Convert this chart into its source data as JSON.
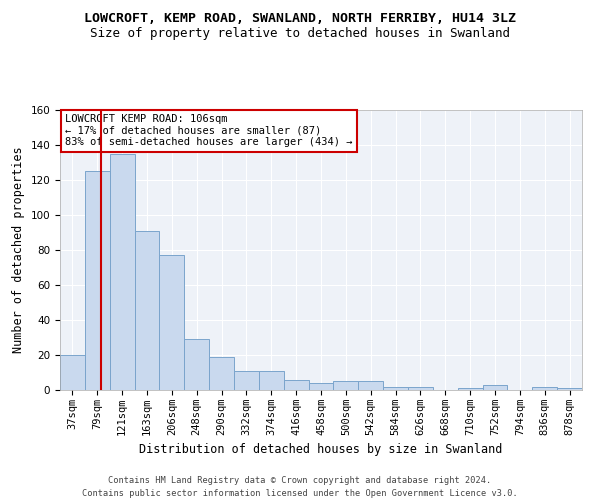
{
  "title": "LOWCROFT, KEMP ROAD, SWANLAND, NORTH FERRIBY, HU14 3LZ",
  "subtitle": "Size of property relative to detached houses in Swanland",
  "xlabel": "Distribution of detached houses by size in Swanland",
  "ylabel": "Number of detached properties",
  "footer_line1": "Contains HM Land Registry data © Crown copyright and database right 2024.",
  "footer_line2": "Contains public sector information licensed under the Open Government Licence v3.0.",
  "bar_labels": [
    "37sqm",
    "79sqm",
    "121sqm",
    "163sqm",
    "206sqm",
    "248sqm",
    "290sqm",
    "332sqm",
    "374sqm",
    "416sqm",
    "458sqm",
    "500sqm",
    "542sqm",
    "584sqm",
    "626sqm",
    "668sqm",
    "710sqm",
    "752sqm",
    "794sqm",
    "836sqm",
    "878sqm"
  ],
  "bar_values": [
    20,
    125,
    135,
    91,
    77,
    29,
    19,
    11,
    11,
    6,
    4,
    5,
    5,
    2,
    2,
    0,
    1,
    3,
    0,
    2,
    1
  ],
  "bar_color": "#c9d9ee",
  "bar_edge_color": "#7aa4cc",
  "bar_width": 1.0,
  "property_value": 106,
  "property_label": "LOWCROFT KEMP ROAD: 106sqm",
  "annotation_line1": "← 17% of detached houses are smaller (87)",
  "annotation_line2": "83% of semi-detached houses are larger (434) →",
  "red_line_color": "#cc0000",
  "annotation_box_color": "#ffffff",
  "annotation_box_edge": "#cc0000",
  "ylim": [
    0,
    160
  ],
  "yticks": [
    0,
    20,
    40,
    60,
    80,
    100,
    120,
    140,
    160
  ],
  "bg_color": "#eef2f8",
  "fig_bg_color": "#ffffff",
  "title_fontsize": 9.5,
  "subtitle_fontsize": 9,
  "xlabel_fontsize": 8.5,
  "ylabel_fontsize": 8.5,
  "tick_fontsize": 7.5,
  "annotation_fontsize": 7.5,
  "footer_fontsize": 6.2
}
